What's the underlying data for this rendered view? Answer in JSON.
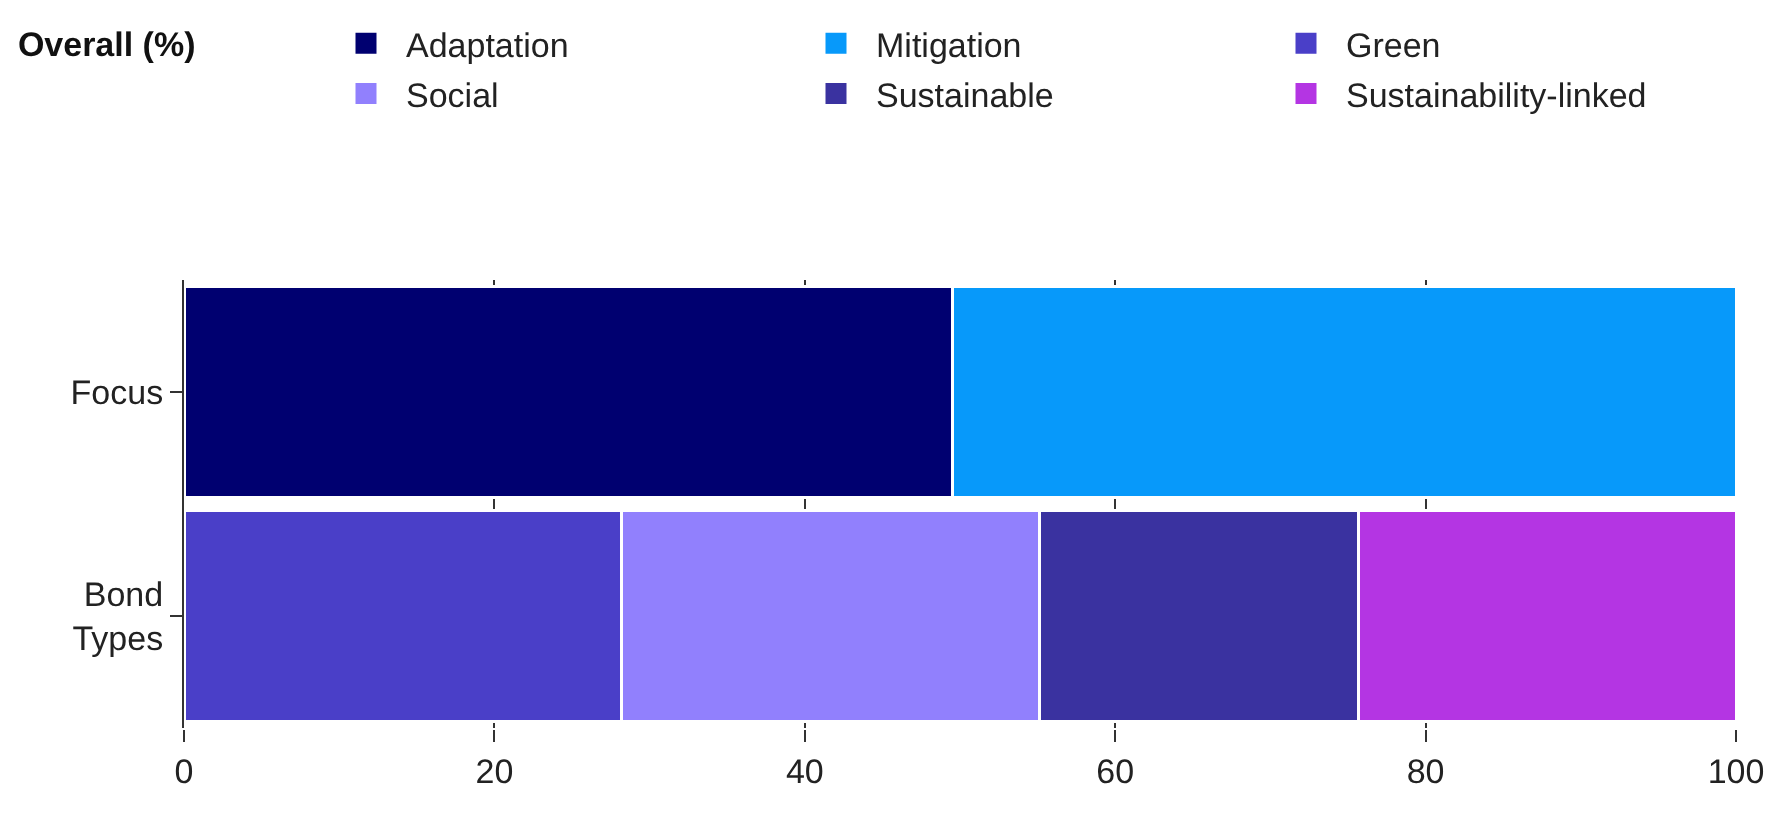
{
  "chart_data": {
    "type": "bar",
    "orientation": "horizontal",
    "stacked": true,
    "title": "Overall (%)",
    "categories": [
      "Focus",
      "Bond Types"
    ],
    "series": [
      {
        "name": "Adaptation",
        "color": "#000070",
        "values": [
          49.5,
          null
        ]
      },
      {
        "name": "Mitigation",
        "color": "#0799fa",
        "values": [
          50.5,
          null
        ]
      },
      {
        "name": "Green",
        "color": "#4a3fc8",
        "values": [
          null,
          28.2
        ]
      },
      {
        "name": "Social",
        "color": "#9180fd",
        "values": [
          null,
          26.9
        ]
      },
      {
        "name": "Sustainable",
        "color": "#3a32a0",
        "values": [
          null,
          20.6
        ]
      },
      {
        "name": "Sustainability-linked",
        "color": "#b435e3",
        "values": [
          null,
          24.3
        ]
      }
    ],
    "xlim": [
      0,
      100
    ],
    "xticks": [
      0,
      20,
      40,
      60,
      80,
      100
    ],
    "grid": "x",
    "legend": "top right"
  }
}
